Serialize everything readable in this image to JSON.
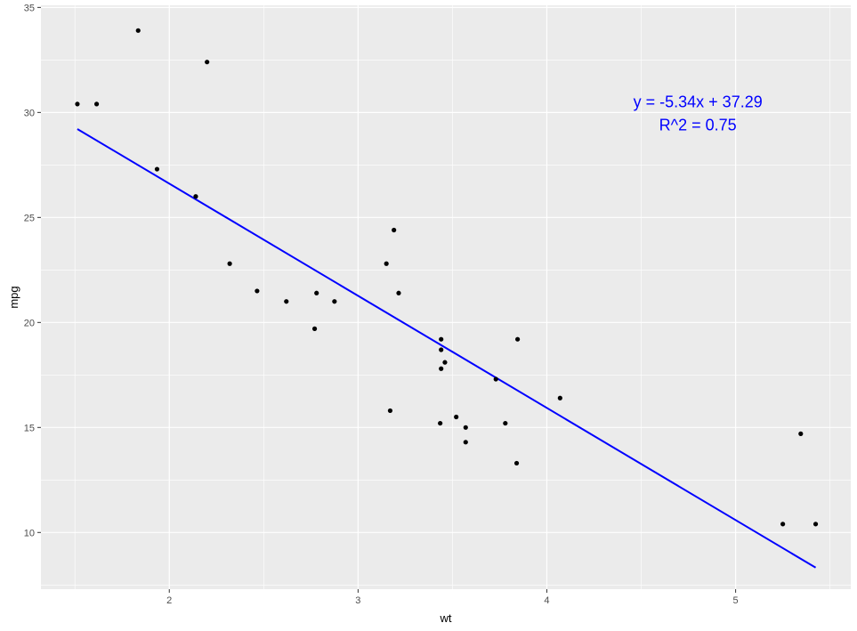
{
  "chart_data": {
    "type": "scatter",
    "title": "",
    "xlabel": "wt",
    "ylabel": "mpg",
    "xlim": [
      1.32,
      5.61
    ],
    "ylim": [
      7.3,
      35.1
    ],
    "x_ticks": [
      2,
      3,
      4,
      5
    ],
    "y_ticks": [
      10,
      15,
      20,
      25,
      30,
      35
    ],
    "grid": true,
    "legend": "none",
    "colors": {
      "panel": "#ebebeb",
      "grid": "#ffffff",
      "points": "#000000",
      "fit_line": "#0000ff",
      "annotation": "#0000ff"
    },
    "points": [
      {
        "x": 2.62,
        "y": 21.0
      },
      {
        "x": 2.875,
        "y": 21.0
      },
      {
        "x": 2.32,
        "y": 22.8
      },
      {
        "x": 3.215,
        "y": 21.4
      },
      {
        "x": 3.44,
        "y": 18.7
      },
      {
        "x": 3.46,
        "y": 18.1
      },
      {
        "x": 3.57,
        "y": 14.3
      },
      {
        "x": 3.19,
        "y": 24.4
      },
      {
        "x": 3.15,
        "y": 22.8
      },
      {
        "x": 3.44,
        "y": 19.2
      },
      {
        "x": 3.44,
        "y": 17.8
      },
      {
        "x": 4.07,
        "y": 16.4
      },
      {
        "x": 3.73,
        "y": 17.3
      },
      {
        "x": 3.78,
        "y": 15.2
      },
      {
        "x": 5.25,
        "y": 10.4
      },
      {
        "x": 5.424,
        "y": 10.4
      },
      {
        "x": 5.345,
        "y": 14.7
      },
      {
        "x": 2.2,
        "y": 32.4
      },
      {
        "x": 1.615,
        "y": 30.4
      },
      {
        "x": 1.835,
        "y": 33.9
      },
      {
        "x": 2.465,
        "y": 21.5
      },
      {
        "x": 3.52,
        "y": 15.5
      },
      {
        "x": 3.435,
        "y": 15.2
      },
      {
        "x": 3.84,
        "y": 13.3
      },
      {
        "x": 3.845,
        "y": 19.2
      },
      {
        "x": 1.935,
        "y": 27.3
      },
      {
        "x": 2.14,
        "y": 26.0
      },
      {
        "x": 1.513,
        "y": 30.4
      },
      {
        "x": 3.17,
        "y": 15.8
      },
      {
        "x": 2.77,
        "y": 19.7
      },
      {
        "x": 3.57,
        "y": 15.0
      },
      {
        "x": 2.78,
        "y": 21.4
      }
    ],
    "fit_line": {
      "slope": -5.34,
      "intercept": 37.29,
      "x_from": 1.513,
      "x_to": 5.424
    },
    "annotation": {
      "equation": "y = -5.34x + 37.29",
      "r_squared": "R^2 = 0.75",
      "x": 4.8,
      "y": 30.0
    }
  }
}
